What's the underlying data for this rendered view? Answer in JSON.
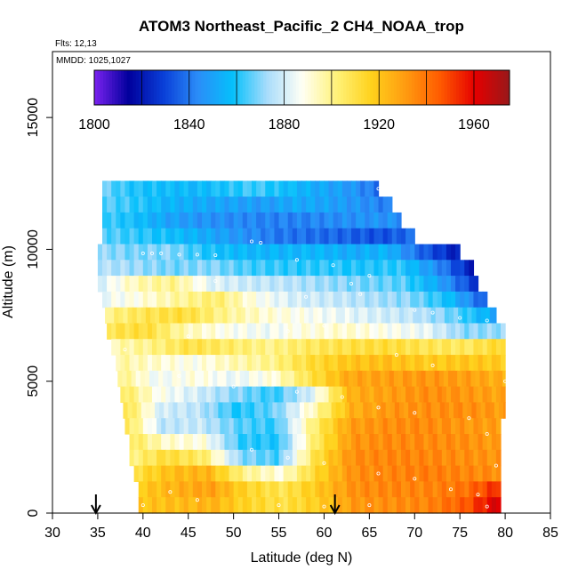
{
  "chart_data": {
    "type": "heatmap",
    "title": "ATOM3 Northeast_Pacific_2 CH4_NOAA_trop",
    "flights_label": "Flts: 12,13",
    "mmdd_label": "MMDD: 1025,1027",
    "xlabel": "Latitude (deg N)",
    "ylabel": "Altitude (m)",
    "xlim": [
      30,
      85
    ],
    "ylim": [
      0,
      17500
    ],
    "x_ticks": [
      30,
      35,
      40,
      45,
      50,
      55,
      60,
      65,
      70,
      75,
      80,
      85
    ],
    "y_ticks": [
      0,
      5000,
      10000,
      15000
    ],
    "colorbar": {
      "range": [
        1800,
        1975
      ],
      "ticks": [
        1800,
        1840,
        1880,
        1920,
        1960
      ],
      "stops": [
        "#7b22f0",
        "#00009c",
        "#0a3fd8",
        "#2b8df8",
        "#05c0fb",
        "#a9dcfb",
        "#fffff5",
        "#fff27a",
        "#ffd21c",
        "#ff9b10",
        "#ff5a00",
        "#e50000",
        "#98181a"
      ]
    },
    "markers_lat": [
      34.8,
      61.2
    ],
    "band_levels": [
      {
        "alt": 12300,
        "lat_start": 35.5,
        "lat_end": 66.0,
        "values": [
          1868,
          1860,
          1858,
          1856,
          1860,
          1864,
          1858,
          1852,
          1848,
          1838
        ]
      },
      {
        "alt": 11700,
        "lat_start": 35.5,
        "lat_end": 67.5,
        "values": [
          1866,
          1862,
          1855,
          1852,
          1850,
          1848,
          1852,
          1850,
          1846,
          1840
        ]
      },
      {
        "alt": 11100,
        "lat_start": 35.5,
        "lat_end": 68.5,
        "values": [
          1864,
          1858,
          1850,
          1846,
          1844,
          1842,
          1842,
          1844,
          1846,
          1845
        ]
      },
      {
        "alt": 10500,
        "lat_start": 35.5,
        "lat_end": 70.0,
        "values": [
          1866,
          1862,
          1858,
          1852,
          1846,
          1840,
          1838,
          1836,
          1832,
          1838
        ]
      },
      {
        "alt": 9900,
        "lat_start": 35.0,
        "lat_end": 75.0,
        "values": [
          1872,
          1868,
          1870,
          1860,
          1856,
          1855,
          1856,
          1852,
          1855,
          1835,
          1820
        ]
      },
      {
        "alt": 9300,
        "lat_start": 35.0,
        "lat_end": 76.5,
        "values": [
          1876,
          1872,
          1868,
          1870,
          1864,
          1862,
          1862,
          1860,
          1862,
          1845,
          1820
        ]
      },
      {
        "alt": 8700,
        "lat_start": 35.0,
        "lat_end": 77.0,
        "values": [
          1880,
          1895,
          1900,
          1882,
          1878,
          1876,
          1872,
          1868,
          1866,
          1850,
          1825
        ]
      },
      {
        "alt": 8100,
        "lat_start": 35.5,
        "lat_end": 78.0,
        "values": [
          1884,
          1890,
          1898,
          1904,
          1888,
          1880,
          1878,
          1874,
          1870,
          1858,
          1832
        ]
      },
      {
        "alt": 7500,
        "lat_start": 35.8,
        "lat_end": 79.0,
        "values": [
          1900,
          1908,
          1912,
          1900,
          1892,
          1888,
          1884,
          1880,
          1876,
          1866,
          1850
        ]
      },
      {
        "alt": 6900,
        "lat_start": 36.0,
        "lat_end": 80.0,
        "values": [
          1908,
          1912,
          1895,
          1888,
          1885,
          1890,
          1892,
          1888,
          1884,
          1870,
          1872
        ]
      },
      {
        "alt": 6300,
        "lat_start": 36.5,
        "lat_end": 80.0,
        "values": [
          1895,
          1900,
          1910,
          1905,
          1900,
          1906,
          1910,
          1912,
          1908,
          1906,
          1915
        ]
      },
      {
        "alt": 5700,
        "lat_start": 37.0,
        "lat_end": 80.0,
        "values": [
          1898,
          1892,
          1888,
          1895,
          1900,
          1912,
          1920,
          1922,
          1918,
          1920,
          1918
        ]
      },
      {
        "alt": 5100,
        "lat_start": 37.2,
        "lat_end": 80.0,
        "values": [
          1902,
          1885,
          1890,
          1884,
          1890,
          1910,
          1928,
          1930,
          1932,
          1930,
          1925
        ]
      },
      {
        "alt": 4500,
        "lat_start": 37.5,
        "lat_end": 80.0,
        "values": [
          1908,
          1888,
          1880,
          1870,
          1862,
          1882,
          1926,
          1930,
          1934,
          1932,
          1928
        ]
      },
      {
        "alt": 3900,
        "lat_start": 37.8,
        "lat_end": 80.0,
        "values": [
          1912,
          1880,
          1876,
          1860,
          1868,
          1895,
          1926,
          1932,
          1934,
          1934,
          1930
        ]
      },
      {
        "alt": 3300,
        "lat_start": 38.0,
        "lat_end": 79.5,
        "values": [
          1910,
          1876,
          1878,
          1866,
          1862,
          1902,
          1930,
          1934,
          1935,
          1932,
          1930
        ]
      },
      {
        "alt": 2700,
        "lat_start": 38.5,
        "lat_end": 79.5,
        "values": [
          1908,
          1892,
          1890,
          1862,
          1860,
          1905,
          1932,
          1935,
          1935,
          1934,
          1930
        ]
      },
      {
        "alt": 2100,
        "lat_start": 38.5,
        "lat_end": 79.5,
        "values": [
          1900,
          1912,
          1905,
          1870,
          1864,
          1910,
          1934,
          1936,
          1936,
          1934,
          1932
        ]
      },
      {
        "alt": 1500,
        "lat_start": 39.0,
        "lat_end": 79.5,
        "values": [
          1910,
          1922,
          1925,
          1900,
          1890,
          1915,
          1934,
          1936,
          1938,
          1936,
          1934
        ]
      },
      {
        "alt": 900,
        "lat_start": 39.5,
        "lat_end": 79.5,
        "values": [
          1918,
          1925,
          1930,
          1915,
          1908,
          1920,
          1934,
          1936,
          1936,
          1940,
          1955
        ]
      },
      {
        "alt": 300,
        "lat_start": 39.5,
        "lat_end": 79.5,
        "values": [
          1920,
          1922,
          1925,
          1915,
          1910,
          1918,
          1932,
          1934,
          1936,
          1945,
          1965
        ]
      }
    ],
    "obs_points": [
      [
        66,
        12300
      ],
      [
        67,
        12150
      ],
      [
        68,
        11850
      ],
      [
        69,
        11500
      ],
      [
        70,
        11100
      ],
      [
        72.2,
        10350
      ],
      [
        73,
        10300
      ],
      [
        40,
        9850
      ],
      [
        41,
        9850
      ],
      [
        42,
        9850
      ],
      [
        44,
        9800
      ],
      [
        46,
        9800
      ],
      [
        48,
        9780
      ],
      [
        52,
        10300
      ],
      [
        53,
        10250
      ],
      [
        57,
        9600
      ],
      [
        61,
        9400
      ],
      [
        65,
        9000
      ],
      [
        63,
        8700
      ],
      [
        64,
        8300
      ],
      [
        70,
        7700
      ],
      [
        72,
        7600
      ],
      [
        75,
        7400
      ],
      [
        78,
        7300
      ],
      [
        60,
        7100
      ],
      [
        56,
        6900
      ],
      [
        45,
        6700
      ],
      [
        38,
        6200
      ],
      [
        44,
        5200
      ],
      [
        50,
        4800
      ],
      [
        57,
        4600
      ],
      [
        62,
        4400
      ],
      [
        66,
        4000
      ],
      [
        70,
        3800
      ],
      [
        76,
        3600
      ],
      [
        78,
        3000
      ],
      [
        52,
        2400
      ],
      [
        56,
        2100
      ],
      [
        60,
        1900
      ],
      [
        66,
        1500
      ],
      [
        70,
        1300
      ],
      [
        74,
        900
      ],
      [
        77,
        700
      ],
      [
        43,
        800
      ],
      [
        46,
        500
      ],
      [
        55,
        300
      ],
      [
        60,
        250
      ],
      [
        65,
        300
      ],
      [
        40,
        300
      ],
      [
        78,
        250
      ],
      [
        79,
        1800
      ],
      [
        80,
        5000
      ],
      [
        72,
        5600
      ],
      [
        68,
        6000
      ],
      [
        58,
        8200
      ],
      [
        48,
        8800
      ]
    ]
  }
}
